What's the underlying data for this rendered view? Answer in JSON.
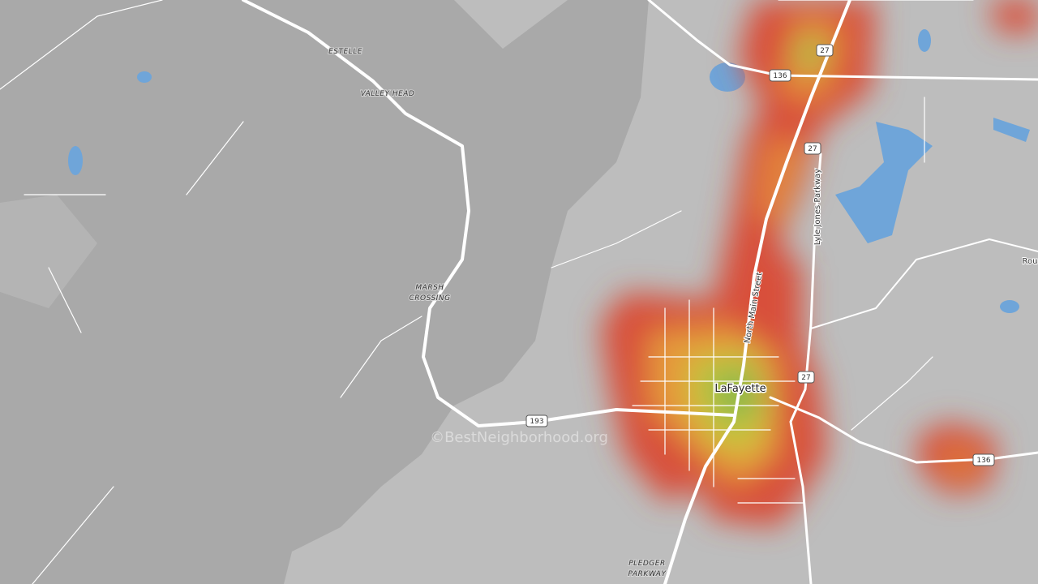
{
  "labels": {
    "estelle": "ESTELLE",
    "valley_head": "VALLEY HEAD",
    "marsh_crossing": [
      "MARSH",
      "CROSSING"
    ],
    "pledger_parkway": [
      "PLEDGER",
      "PARKWAY"
    ],
    "city": "LaFayette",
    "north_main": "North Main Street",
    "lyle_jones": "Lyle Jones Parkway",
    "edge_road": "Rou"
  },
  "shields": [
    "27",
    "27",
    "27",
    "136",
    "136",
    "193"
  ],
  "watermark": "©BestNeighborhood.org"
}
